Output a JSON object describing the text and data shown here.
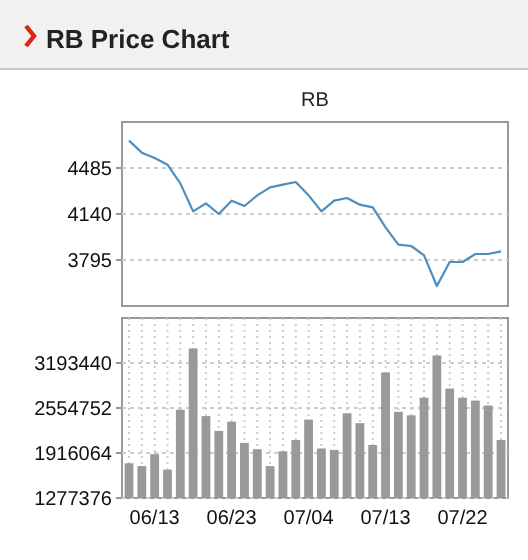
{
  "chart_data": [
    {
      "type": "line",
      "title": "RB Price Chart",
      "subtitle": "RB",
      "series": [
        {
          "color": "#4a8fbf",
          "values": [
            4690,
            4600,
            4560,
            4510,
            4370,
            4160,
            4220,
            4140,
            4240,
            4200,
            4280,
            4340,
            4360,
            4380,
            4280,
            4160,
            4240,
            4260,
            4210,
            4190,
            4040,
            3910,
            3900,
            3830,
            3600,
            3780,
            3780,
            3840,
            3840,
            3860
          ]
        }
      ],
      "ylim": [
        3450,
        4830
      ],
      "yticks": [
        3795,
        4140,
        4485
      ],
      "grid": "y",
      "marker": "none",
      "line_style": "solid"
    },
    {
      "type": "bar",
      "categories": [
        null,
        null,
        "06/13",
        null,
        null,
        null,
        null,
        null,
        "06/23",
        null,
        null,
        null,
        null,
        null,
        "07/04",
        null,
        null,
        null,
        null,
        null,
        "07/13",
        null,
        null,
        null,
        null,
        null,
        "07/22",
        null,
        null,
        null
      ],
      "series": [
        {
          "color": "#999999",
          "values": [
            1770000,
            1730000,
            1900000,
            1680000,
            2530000,
            3400000,
            2440000,
            2230000,
            2360000,
            2060000,
            1970000,
            1730000,
            1940000,
            2100000,
            2390000,
            1980000,
            1960000,
            2480000,
            2340000,
            2030000,
            3060000,
            2500000,
            2450000,
            2700000,
            3300000,
            2830000,
            2700000,
            2660000,
            2590000,
            2100000
          ]
        }
      ],
      "ylim": [
        1277376,
        3832128
      ],
      "yticks": [
        1277376,
        1916064,
        2554752,
        3193440
      ],
      "grid": true
    }
  ]
}
